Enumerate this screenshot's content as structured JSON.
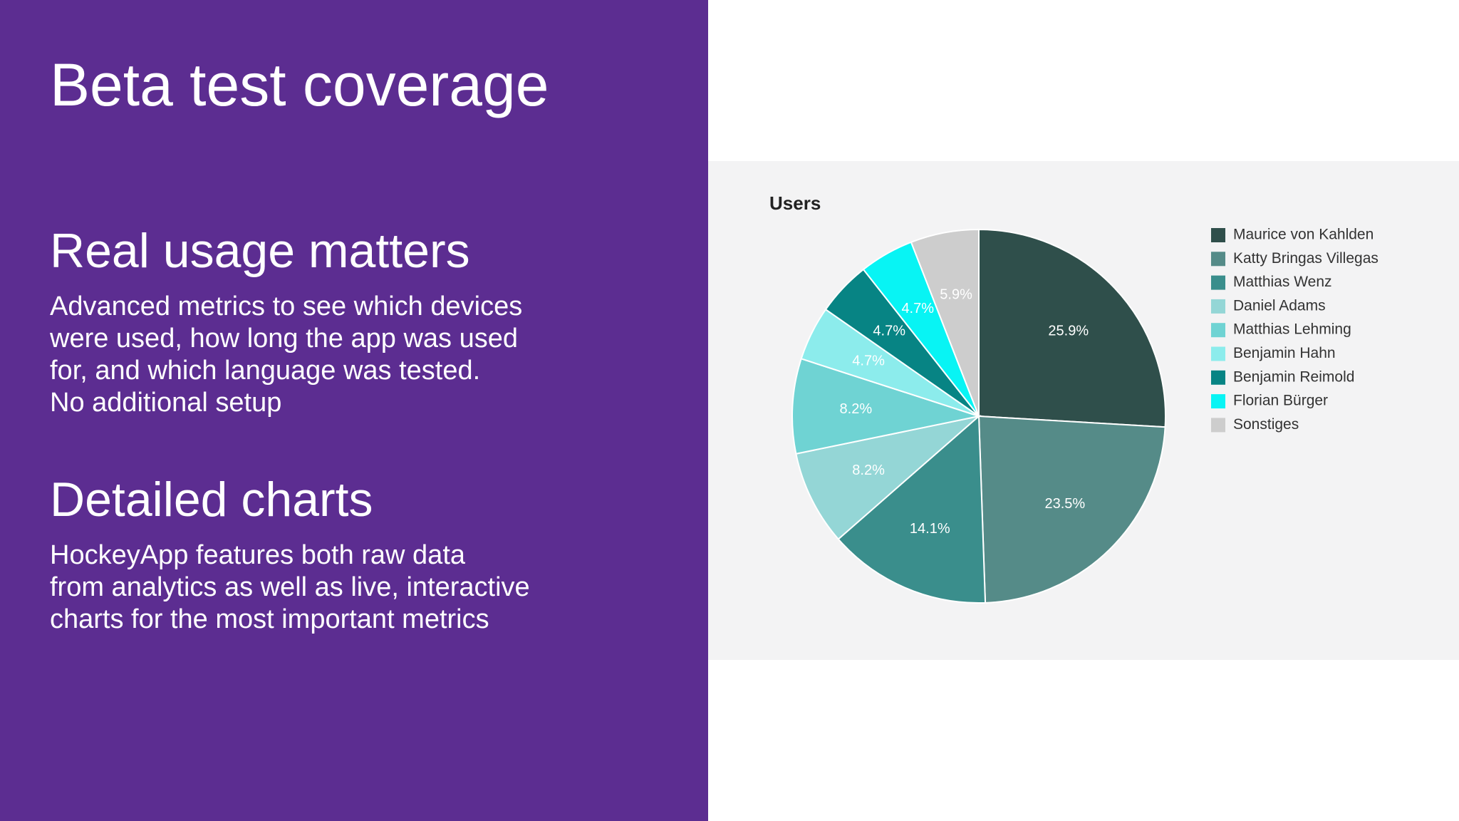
{
  "slide_title": "Beta test coverage",
  "sections": [
    {
      "heading": "Real usage matters",
      "body": [
        "Advanced metrics to see which devices",
        "were used, how long the app was used",
        "for, and which language was tested.",
        "No additional setup"
      ]
    },
    {
      "heading": "Detailed charts",
      "body": [
        "HockeyApp features both raw data",
        "from analytics as well as live, interactive",
        "charts for the most important metrics"
      ]
    }
  ],
  "chart_data": {
    "type": "pie",
    "title": "Users",
    "categories": [
      "Maurice von Kahlden",
      "Katty Bringas Villegas",
      "Matthias Wenz",
      "Daniel Adams",
      "Matthias Lehming",
      "Benjamin Hahn",
      "Benjamin Reimold",
      "Florian Bürger",
      "Sonstiges"
    ],
    "values": [
      25.9,
      23.5,
      14.1,
      8.2,
      8.2,
      4.7,
      4.7,
      4.7,
      5.9
    ],
    "value_labels": [
      "25.9%",
      "23.5%",
      "14.1%",
      "8.2%",
      "8.2%",
      "4.7%",
      "4.7%",
      "4.7%",
      "5.9%"
    ],
    "colors": [
      "#2f4f4b",
      "#558b88",
      "#3a8e8c",
      "#94d6d6",
      "#6fd3d3",
      "#8cecec",
      "#078484",
      "#08f4f4",
      "#cdcdcd"
    ],
    "legend": "right"
  }
}
